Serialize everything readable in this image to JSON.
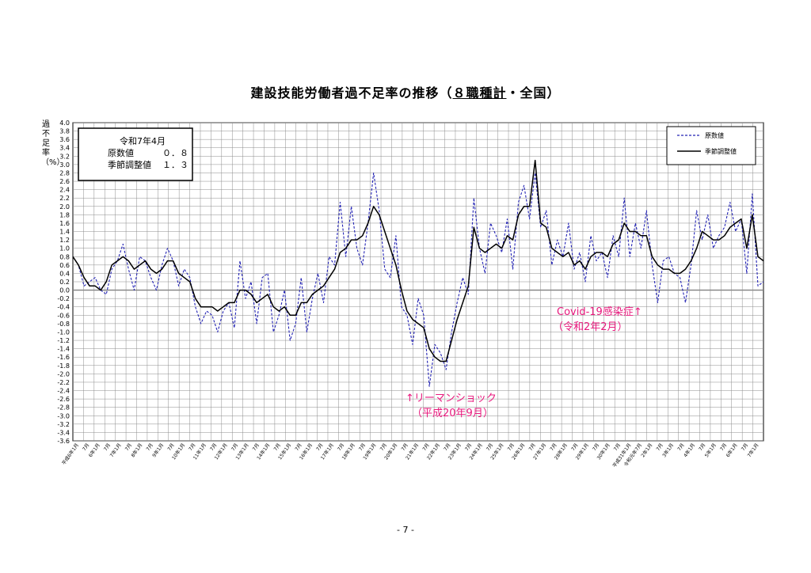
{
  "title": {
    "prefix": "建設技能労働者過不足率の推移（",
    "underlined": "８職種計",
    "suffix": "・全国）"
  },
  "page_number": "- 7 -",
  "info_box": {
    "period": "令和7年4月",
    "rows": [
      {
        "label": "原数値",
        "value": "０．８"
      },
      {
        "label": "季節調整値",
        "value": "１．３"
      }
    ]
  },
  "annotations": {
    "lehman": [
      "↑リーマンショック",
      "（平成20年9月）"
    ],
    "covid": [
      "Covid-19感染症↑",
      "（令和2年2月）"
    ]
  },
  "colors": {
    "raw": "#2323b4",
    "seasonal": "#000000",
    "annotation": "#e8197d",
    "zero_line": "#808080"
  },
  "chart_data": {
    "type": "line",
    "ylabel": "過不足率（%）",
    "ylim": [
      -3.6,
      4.0
    ],
    "ytick_step": 0.2,
    "grid": true,
    "legend_position": "top-right",
    "x_ticks": [
      "平成6年1月",
      "7月",
      "6年1月",
      "7月",
      "7年1月",
      "7月",
      "8年1月",
      "7月",
      "9年1月",
      "7月",
      "10年1月",
      "7月",
      "11年1月",
      "7月",
      "12年1月",
      "7月",
      "13年1月",
      "7月",
      "14年1月",
      "7月",
      "15年1月",
      "7月",
      "16年1月",
      "7月",
      "17年1月",
      "7月",
      "18年1月",
      "7月",
      "19年1月",
      "7月",
      "20年1月",
      "7月",
      "21年1月",
      "7月",
      "22年1月",
      "7月",
      "23年1月",
      "7月",
      "24年1月",
      "7月",
      "25年1月",
      "7月",
      "26年1月",
      "7月",
      "27年1月",
      "7月",
      "28年1月",
      "7月",
      "29年1月",
      "7月",
      "30年1月",
      "7月",
      "平成31年1月",
      "令和元年7月",
      "2年1月",
      "7月",
      "3年1月",
      "7月",
      "4年1月",
      "7月",
      "5年1月",
      "7月",
      "6年1月",
      "7月",
      "7年1月"
    ],
    "series": [
      {
        "name": "原数値",
        "style": "dashed",
        "points": [
          [
            0,
            0.8
          ],
          [
            1,
            0.6
          ],
          [
            2,
            0.1
          ],
          [
            3,
            0.2
          ],
          [
            4,
            0.3
          ],
          [
            5,
            0.0
          ],
          [
            6,
            -0.1
          ],
          [
            7,
            0.5
          ],
          [
            8,
            0.7
          ],
          [
            9,
            1.1
          ],
          [
            10,
            0.5
          ],
          [
            11,
            0.0
          ],
          [
            12,
            0.8
          ],
          [
            13,
            0.7
          ],
          [
            14,
            0.3
          ],
          [
            15,
            0.0
          ],
          [
            16,
            0.6
          ],
          [
            17,
            1.0
          ],
          [
            18,
            0.7
          ],
          [
            19,
            0.1
          ],
          [
            20,
            0.5
          ],
          [
            21,
            0.3
          ],
          [
            22,
            -0.4
          ],
          [
            23,
            -0.8
          ],
          [
            24,
            -0.5
          ],
          [
            25,
            -0.6
          ],
          [
            26,
            -1.0
          ],
          [
            27,
            -0.5
          ],
          [
            28,
            -0.3
          ],
          [
            29,
            -0.9
          ],
          [
            30,
            0.7
          ],
          [
            31,
            -0.2
          ],
          [
            32,
            0.2
          ],
          [
            33,
            -0.8
          ],
          [
            34,
            0.3
          ],
          [
            35,
            0.4
          ],
          [
            36,
            -1.0
          ],
          [
            37,
            -0.6
          ],
          [
            38,
            0.0
          ],
          [
            39,
            -1.2
          ],
          [
            40,
            -0.8
          ],
          [
            41,
            0.3
          ],
          [
            42,
            -1.0
          ],
          [
            43,
            -0.2
          ],
          [
            44,
            0.4
          ],
          [
            45,
            -0.3
          ],
          [
            46,
            0.8
          ],
          [
            47,
            0.6
          ],
          [
            48,
            2.1
          ],
          [
            49,
            0.8
          ],
          [
            50,
            2.0
          ],
          [
            51,
            1.0
          ],
          [
            52,
            0.6
          ],
          [
            53,
            1.6
          ],
          [
            54,
            2.8
          ],
          [
            55,
            1.9
          ],
          [
            56,
            0.5
          ],
          [
            57,
            0.3
          ],
          [
            58,
            1.3
          ],
          [
            59,
            -0.4
          ],
          [
            60,
            -0.6
          ],
          [
            61,
            -1.3
          ],
          [
            62,
            -0.2
          ],
          [
            63,
            -0.6
          ],
          [
            64,
            -2.3
          ],
          [
            65,
            -1.3
          ],
          [
            66,
            -1.5
          ],
          [
            67,
            -1.9
          ],
          [
            68,
            -1.0
          ],
          [
            69,
            -0.3
          ],
          [
            70,
            0.3
          ],
          [
            71,
            -0.1
          ],
          [
            72,
            2.2
          ],
          [
            73,
            1.0
          ],
          [
            74,
            0.4
          ],
          [
            75,
            1.6
          ],
          [
            76,
            1.3
          ],
          [
            77,
            0.9
          ],
          [
            78,
            1.7
          ],
          [
            79,
            0.5
          ],
          [
            80,
            2.1
          ],
          [
            81,
            2.5
          ],
          [
            82,
            1.7
          ],
          [
            83,
            2.8
          ],
          [
            84,
            1.5
          ],
          [
            85,
            1.9
          ],
          [
            86,
            0.6
          ],
          [
            87,
            1.2
          ],
          [
            88,
            0.8
          ],
          [
            89,
            1.6
          ],
          [
            90,
            0.5
          ],
          [
            91,
            0.9
          ],
          [
            92,
            0.2
          ],
          [
            93,
            1.3
          ],
          [
            94,
            0.7
          ],
          [
            95,
            0.9
          ],
          [
            96,
            0.3
          ],
          [
            97,
            1.3
          ],
          [
            98,
            0.8
          ],
          [
            99,
            2.2
          ],
          [
            100,
            0.8
          ],
          [
            101,
            1.6
          ],
          [
            102,
            1.0
          ],
          [
            103,
            1.9
          ],
          [
            104,
            0.6
          ],
          [
            105,
            -0.3
          ],
          [
            106,
            0.7
          ],
          [
            107,
            0.8
          ],
          [
            108,
            0.4
          ],
          [
            109,
            0.3
          ],
          [
            110,
            -0.3
          ],
          [
            111,
            0.6
          ],
          [
            112,
            1.9
          ],
          [
            113,
            1.2
          ],
          [
            114,
            1.8
          ],
          [
            115,
            1.0
          ],
          [
            116,
            1.3
          ],
          [
            117,
            1.5
          ],
          [
            118,
            2.1
          ],
          [
            119,
            1.4
          ],
          [
            120,
            1.7
          ],
          [
            121,
            0.4
          ],
          [
            122,
            2.3
          ],
          [
            123,
            0.1
          ],
          [
            124,
            0.2
          ]
        ]
      },
      {
        "name": "季節調整値",
        "style": "solid",
        "points": [
          [
            0,
            0.8
          ],
          [
            1,
            0.6
          ],
          [
            2,
            0.3
          ],
          [
            3,
            0.1
          ],
          [
            4,
            0.1
          ],
          [
            5,
            0.0
          ],
          [
            6,
            0.2
          ],
          [
            7,
            0.6
          ],
          [
            8,
            0.7
          ],
          [
            9,
            0.8
          ],
          [
            10,
            0.7
          ],
          [
            11,
            0.5
          ],
          [
            12,
            0.6
          ],
          [
            13,
            0.7
          ],
          [
            14,
            0.5
          ],
          [
            15,
            0.4
          ],
          [
            16,
            0.5
          ],
          [
            17,
            0.7
          ],
          [
            18,
            0.7
          ],
          [
            19,
            0.4
          ],
          [
            20,
            0.3
          ],
          [
            21,
            0.2
          ],
          [
            22,
            -0.2
          ],
          [
            23,
            -0.4
          ],
          [
            24,
            -0.4
          ],
          [
            25,
            -0.4
          ],
          [
            26,
            -0.5
          ],
          [
            27,
            -0.4
          ],
          [
            28,
            -0.3
          ],
          [
            29,
            -0.3
          ],
          [
            30,
            0.0
          ],
          [
            31,
            0.0
          ],
          [
            32,
            -0.1
          ],
          [
            33,
            -0.3
          ],
          [
            34,
            -0.2
          ],
          [
            35,
            -0.1
          ],
          [
            36,
            -0.4
          ],
          [
            37,
            -0.5
          ],
          [
            38,
            -0.4
          ],
          [
            39,
            -0.6
          ],
          [
            40,
            -0.6
          ],
          [
            41,
            -0.3
          ],
          [
            42,
            -0.3
          ],
          [
            43,
            -0.1
          ],
          [
            44,
            0.0
          ],
          [
            45,
            0.1
          ],
          [
            46,
            0.3
          ],
          [
            47,
            0.5
          ],
          [
            48,
            0.9
          ],
          [
            49,
            1.0
          ],
          [
            50,
            1.2
          ],
          [
            51,
            1.2
          ],
          [
            52,
            1.3
          ],
          [
            53,
            1.6
          ],
          [
            54,
            2.0
          ],
          [
            55,
            1.8
          ],
          [
            56,
            1.4
          ],
          [
            57,
            1.0
          ],
          [
            58,
            0.6
          ],
          [
            59,
            0.0
          ],
          [
            60,
            -0.5
          ],
          [
            61,
            -0.7
          ],
          [
            62,
            -0.8
          ],
          [
            63,
            -0.9
          ],
          [
            64,
            -1.4
          ],
          [
            65,
            -1.6
          ],
          [
            66,
            -1.7
          ],
          [
            67,
            -1.7
          ],
          [
            68,
            -1.2
          ],
          [
            69,
            -0.7
          ],
          [
            70,
            -0.3
          ],
          [
            71,
            0.1
          ],
          [
            72,
            1.5
          ],
          [
            73,
            1.0
          ],
          [
            74,
            0.9
          ],
          [
            75,
            1.0
          ],
          [
            76,
            1.1
          ],
          [
            77,
            1.0
          ],
          [
            78,
            1.3
          ],
          [
            79,
            1.2
          ],
          [
            80,
            1.8
          ],
          [
            81,
            2.0
          ],
          [
            82,
            2.0
          ],
          [
            83,
            3.1
          ],
          [
            84,
            1.6
          ],
          [
            85,
            1.5
          ],
          [
            86,
            1.0
          ],
          [
            87,
            0.9
          ],
          [
            88,
            0.8
          ],
          [
            89,
            0.9
          ],
          [
            90,
            0.6
          ],
          [
            91,
            0.7
          ],
          [
            92,
            0.5
          ],
          [
            93,
            0.8
          ],
          [
            94,
            0.9
          ],
          [
            95,
            0.9
          ],
          [
            96,
            0.8
          ],
          [
            97,
            1.1
          ],
          [
            98,
            1.2
          ],
          [
            99,
            1.6
          ],
          [
            100,
            1.4
          ],
          [
            101,
            1.4
          ],
          [
            102,
            1.3
          ],
          [
            103,
            1.3
          ],
          [
            104,
            0.8
          ],
          [
            105,
            0.6
          ],
          [
            106,
            0.5
          ],
          [
            107,
            0.5
          ],
          [
            108,
            0.4
          ],
          [
            109,
            0.4
          ],
          [
            110,
            0.5
          ],
          [
            111,
            0.7
          ],
          [
            112,
            1.0
          ],
          [
            113,
            1.4
          ],
          [
            114,
            1.3
          ],
          [
            115,
            1.2
          ],
          [
            116,
            1.2
          ],
          [
            117,
            1.3
          ],
          [
            118,
            1.5
          ],
          [
            119,
            1.6
          ],
          [
            120,
            1.7
          ],
          [
            121,
            1.0
          ],
          [
            122,
            1.8
          ],
          [
            123,
            0.8
          ],
          [
            124,
            0.7
          ]
        ]
      }
    ]
  }
}
